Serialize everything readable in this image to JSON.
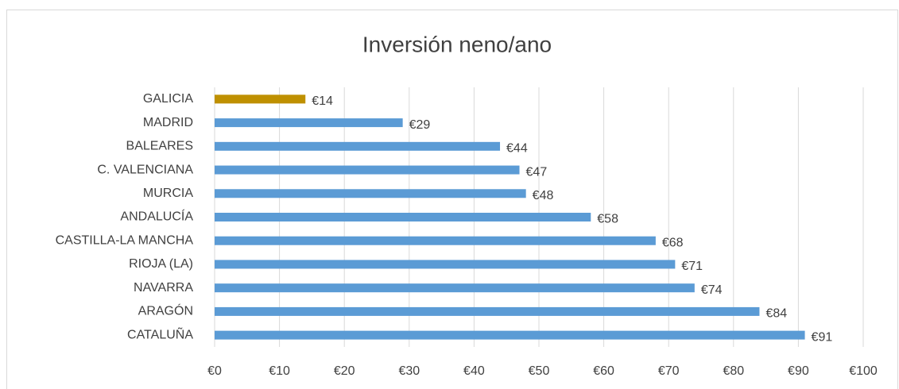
{
  "chart_data": {
    "type": "bar",
    "orientation": "horizontal",
    "title": "Inversión neno/ano",
    "categories": [
      "GALICIA",
      "MADRID",
      "BALEARES",
      "C.  VALENCIANA",
      "MURCIA",
      "ANDALUCÍA",
      "CASTILLA-LA MANCHA",
      "RIOJA (LA)",
      "NAVARRA",
      "ARAGÓN",
      "CATALUÑA"
    ],
    "values": [
      14,
      29,
      44,
      47,
      48,
      58,
      68,
      71,
      74,
      84,
      91
    ],
    "value_labels": [
      "€14",
      "€29",
      "€44",
      "€47",
      "€48",
      "€58",
      "€68",
      "€71",
      "€74",
      "€84",
      "€91"
    ],
    "colors": [
      "#bf9000",
      "#5b9bd5",
      "#5b9bd5",
      "#5b9bd5",
      "#5b9bd5",
      "#5b9bd5",
      "#5b9bd5",
      "#5b9bd5",
      "#5b9bd5",
      "#5b9bd5",
      "#5b9bd5"
    ],
    "xlim": [
      0,
      100
    ],
    "xticks": [
      {
        "value": 0,
        "label": "€0"
      },
      {
        "value": 10,
        "label": "€10"
      },
      {
        "value": 20,
        "label": "€20"
      },
      {
        "value": 30,
        "label": "€30"
      },
      {
        "value": 40,
        "label": "€40"
      },
      {
        "value": 50,
        "label": "€50"
      },
      {
        "value": 60,
        "label": "€60"
      },
      {
        "value": 70,
        "label": "€70"
      },
      {
        "value": 80,
        "label": "€80"
      },
      {
        "value": 90,
        "label": "€90"
      },
      {
        "value": 100,
        "label": "€100"
      }
    ],
    "grid": true
  }
}
